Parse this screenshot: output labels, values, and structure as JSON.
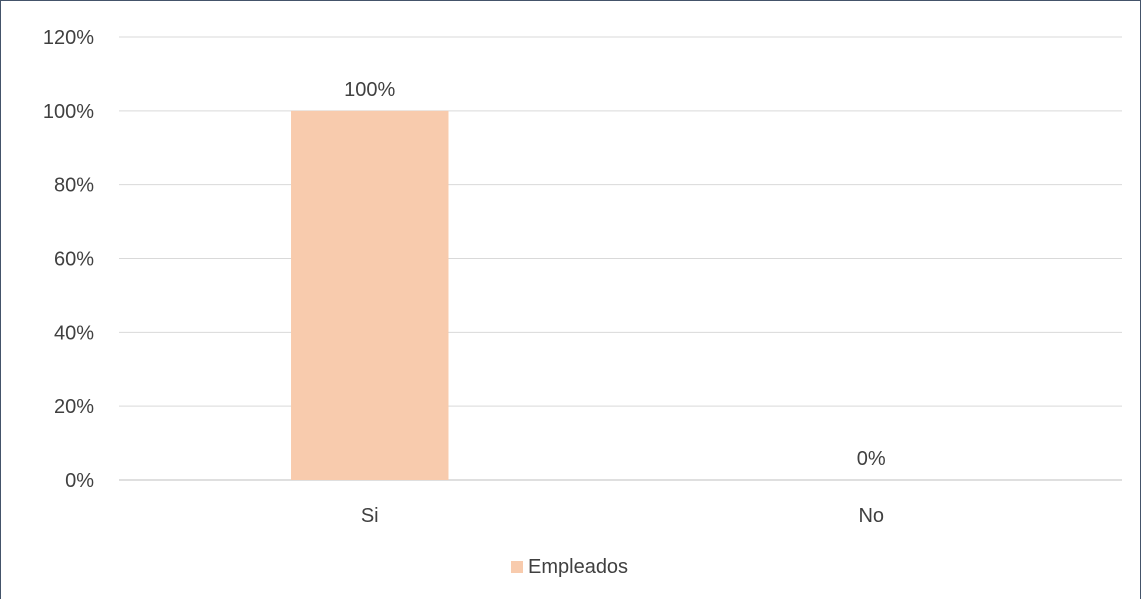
{
  "chart_data": {
    "type": "bar",
    "categories": [
      "Si",
      "No"
    ],
    "series": [
      {
        "name": "Empleados",
        "values": [
          100,
          0
        ],
        "color": "#f8cbad"
      }
    ],
    "data_labels": [
      "100%",
      "0%"
    ],
    "y_ticks": [
      "0%",
      "20%",
      "40%",
      "60%",
      "80%",
      "100%",
      "120%"
    ],
    "ylim": [
      0,
      120
    ],
    "grid": true,
    "legend_position": "bottom"
  }
}
